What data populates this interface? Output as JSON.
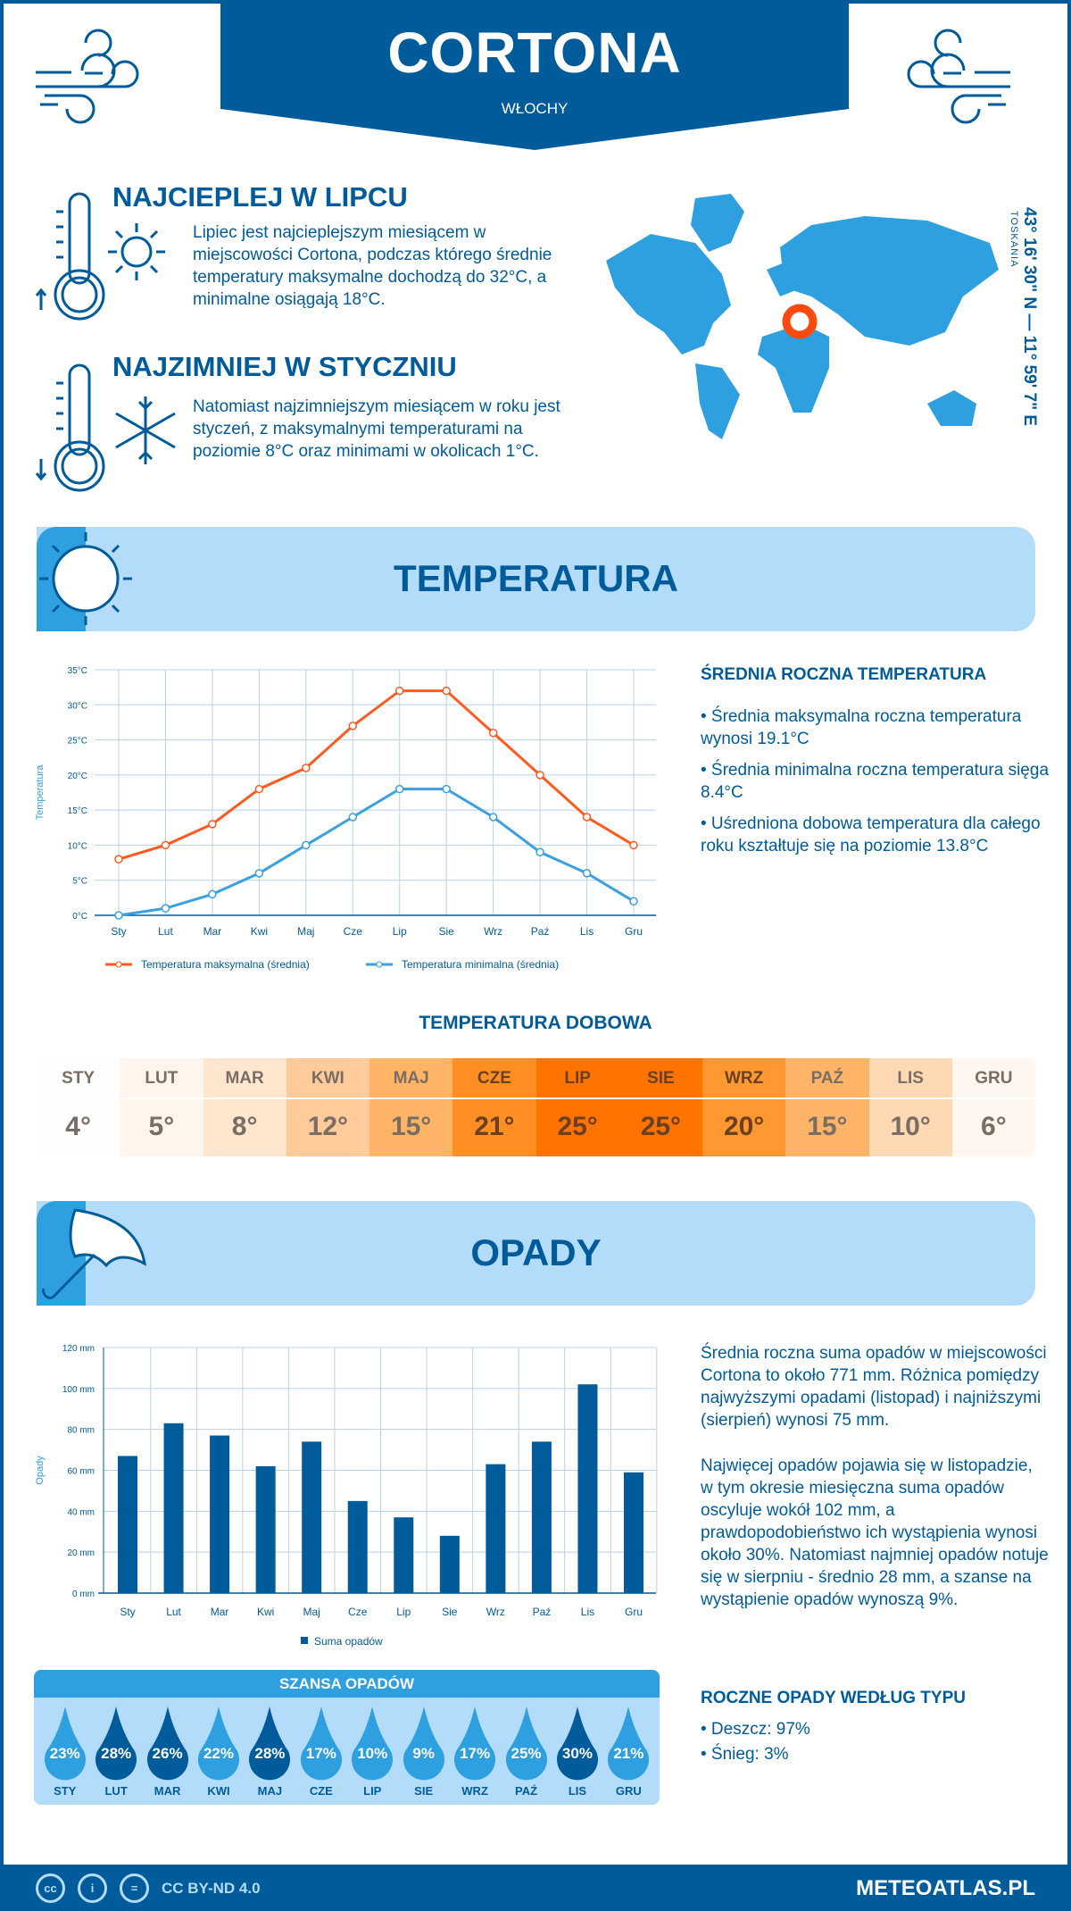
{
  "header": {
    "city": "CORTONA",
    "country": "WŁOCHY"
  },
  "warmest": {
    "title": "NAJCIEPLEJ W LIPCU",
    "text": "Lipiec jest najcieplejszym miesiącem w miejscowości Cortona, podczas którego średnie temperatury maksymalne dochodzą do 32°C, a minimalne osiągają 18°C."
  },
  "coldest": {
    "title": "NAJZIMNIEJ W STYCZNIU",
    "text": "Natomiast najzimniejszym miesiącem w roku jest styczeń, z maksymalnymi temperaturami na poziomie 8°C oraz minimami w okolicach 1°C."
  },
  "location": {
    "coords": "43° 16' 30\" N — 11° 59' 7\" E",
    "region": "TOSKANIA"
  },
  "temperature_section": {
    "title": "TEMPERATURA",
    "summary_title": "ŚREDNIA ROCZNA TEMPERATURA",
    "bullets": [
      "• Średnia maksymalna roczna temperatura wynosi 19.1°C",
      "• Średnia minimalna roczna temperatura sięga 8.4°C",
      "• Uśredniona dobowa temperatura dla całego roku kształtuje się na poziomie 13.8°C"
    ]
  },
  "daily": {
    "title": "TEMPERATURA DOBOWA",
    "months": [
      "STY",
      "LUT",
      "MAR",
      "KWI",
      "MAJ",
      "CZE",
      "LIP",
      "SIE",
      "WRZ",
      "PAŹ",
      "LIS",
      "GRU"
    ],
    "values": [
      "4°",
      "5°",
      "8°",
      "12°",
      "15°",
      "21°",
      "25°",
      "25°",
      "20°",
      "15°",
      "10°",
      "6°"
    ],
    "colors": [
      "#fefefe",
      "#fff5ec",
      "#ffe6cf",
      "#ffcb9a",
      "#ffb565",
      "#ff8f22",
      "#ff7300",
      "#ff7300",
      "#ff9830",
      "#ffb468",
      "#ffd9b3",
      "#fff6ef"
    ]
  },
  "precip_section": {
    "title": "OPADY",
    "text1": "Średnia roczna suma opadów w miejscowości Cortona to około 771 mm. Różnica pomiędzy najwyższymi opadami (listopad) i najniższymi (sierpień) wynosi 75 mm.",
    "text2": "Najwięcej opadów pojawia się w listopadzie, w tym okresie miesięczna suma opadów oscyluje wokół 102 mm, a prawdopodobieństwo ich wystąpienia wynosi około 30%. Natomiast najmniej opadów notuje się w sierpniu - średnio 28 mm, a szanse na wystąpienie opadów wynoszą 9%.",
    "type_title": "ROCZNE OPADY WEDŁUG TYPU",
    "types": [
      "• Deszcz: 97%",
      "• Śnieg: 3%"
    ]
  },
  "chance": {
    "title": "SZANSA OPADÓW",
    "months": [
      "STY",
      "LUT",
      "MAR",
      "KWI",
      "MAJ",
      "CZE",
      "LIP",
      "SIE",
      "WRZ",
      "PAŹ",
      "LIS",
      "GRU"
    ],
    "values": [
      "23%",
      "28%",
      "26%",
      "22%",
      "28%",
      "17%",
      "10%",
      "9%",
      "17%",
      "25%",
      "30%",
      "21%"
    ]
  },
  "footer": {
    "license": "CC BY-ND 4.0",
    "site": "METEOATLAS.PL",
    "cc": "cc",
    "by": "i",
    "nd": "="
  },
  "colors": {
    "dark_blue": "#005b9a",
    "light_blue": "#2e9fdf",
    "pale_blue": "#b3dcfb",
    "max_line": "#ff5a1f",
    "min_line": "#3aa0e0"
  },
  "chart_data": [
    {
      "type": "line",
      "categories": [
        "Sty",
        "Lut",
        "Mar",
        "Kwi",
        "Maj",
        "Cze",
        "Lip",
        "Sie",
        "Wrz",
        "Paź",
        "Lis",
        "Gru"
      ],
      "ylabel": "Temperatura",
      "ylim": [
        0,
        35
      ],
      "yticks": [
        "0°C",
        "5°C",
        "10°C",
        "15°C",
        "20°C",
        "25°C",
        "30°C",
        "35°C"
      ],
      "grid": true,
      "legend": "bottom",
      "series": [
        {
          "name": "Temperatura maksymalna (średnia)",
          "color": "#ff5a1f",
          "values": [
            8,
            10,
            13,
            18,
            21,
            27,
            32,
            32,
            26,
            20,
            14,
            10
          ]
        },
        {
          "name": "Temperatura minimalna (średnia)",
          "color": "#3aa0e0",
          "values": [
            0,
            1,
            3,
            6,
            10,
            14,
            18,
            18,
            14,
            9,
            6,
            2
          ]
        }
      ]
    },
    {
      "type": "bar",
      "categories": [
        "Sty",
        "Lut",
        "Mar",
        "Kwi",
        "Maj",
        "Cze",
        "Lip",
        "Sie",
        "Wrz",
        "Paź",
        "Lis",
        "Gru"
      ],
      "ylabel": "Opady",
      "ylim": [
        0,
        120
      ],
      "yticks": [
        "0 mm",
        "20 mm",
        "40 mm",
        "60 mm",
        "80 mm",
        "100 mm",
        "120 mm"
      ],
      "grid": true,
      "legend": "bottom",
      "series": [
        {
          "name": "Suma opadów",
          "color": "#005b9a",
          "values": [
            67,
            83,
            77,
            62,
            74,
            45,
            37,
            28,
            63,
            74,
            102,
            59
          ]
        }
      ]
    }
  ]
}
